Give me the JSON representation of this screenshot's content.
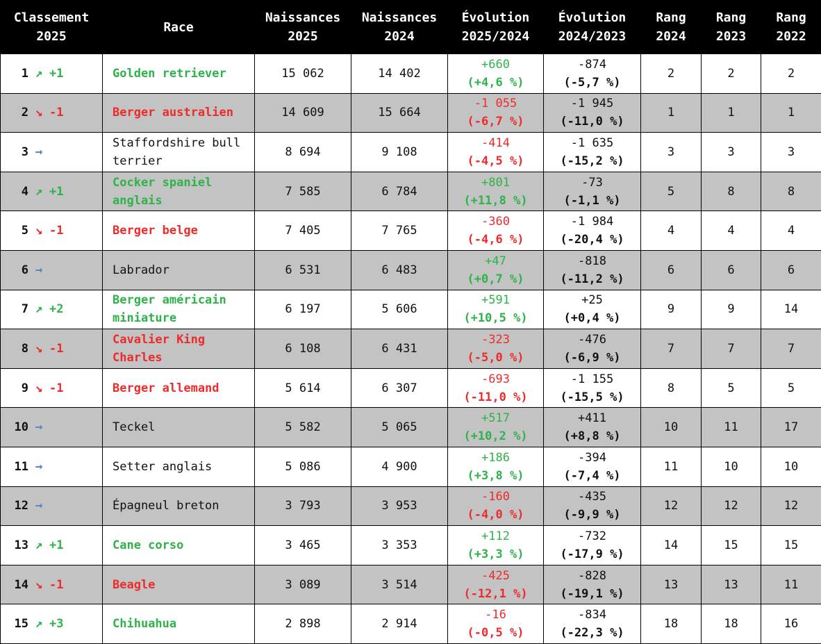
{
  "chart_data": {
    "type": "table",
    "columns": [
      "Classement\n2025",
      "Race",
      "Naissances\n2025",
      "Naissances\n2024",
      "Évolution\n2025/2024",
      "Évolution\n2024/2023",
      "Rang\n2024",
      "Rang\n2023",
      "Rang\n2022"
    ],
    "colors": {
      "up": "#2db34a",
      "down": "#ee2b2b",
      "same": "#5b86c5",
      "header_bg": "#000000",
      "alt_row": "#c3c3c3"
    },
    "rows": [
      {
        "rank": "1",
        "trend": "up",
        "change": "+1",
        "race": "Golden retriever",
        "n2025": "15 062",
        "n2024": "14 402",
        "evo_abs": "+660",
        "evo_pct": "(+4,6 %)",
        "evo_trend": "up",
        "evo2_abs": "-874",
        "evo2_pct": "(-5,7 %)",
        "r2024": "2",
        "r2023": "2",
        "r2022": "2"
      },
      {
        "rank": "2",
        "trend": "down",
        "change": "-1",
        "race": "Berger australien",
        "n2025": "14 609",
        "n2024": "15 664",
        "evo_abs": "-1 055",
        "evo_pct": "(-6,7 %)",
        "evo_trend": "down",
        "evo2_abs": "-1 945",
        "evo2_pct": "(-11,0 %)",
        "r2024": "1",
        "r2023": "1",
        "r2022": "1"
      },
      {
        "rank": "3",
        "trend": "same",
        "change": "",
        "race": "Staffordshire bull terrier",
        "n2025": "8 694",
        "n2024": "9 108",
        "evo_abs": "-414",
        "evo_pct": "(-4,5 %)",
        "evo_trend": "down",
        "evo2_abs": "-1 635",
        "evo2_pct": "(-15,2 %)",
        "r2024": "3",
        "r2023": "3",
        "r2022": "3"
      },
      {
        "rank": "4",
        "trend": "up",
        "change": "+1",
        "race": "Cocker spaniel anglais",
        "n2025": "7 585",
        "n2024": "6 784",
        "evo_abs": "+801",
        "evo_pct": "(+11,8 %)",
        "evo_trend": "up",
        "evo2_abs": "-73",
        "evo2_pct": "(-1,1 %)",
        "r2024": "5",
        "r2023": "8",
        "r2022": "8"
      },
      {
        "rank": "5",
        "trend": "down",
        "change": "-1",
        "race": "Berger belge",
        "n2025": "7 405",
        "n2024": "7 765",
        "evo_abs": "-360",
        "evo_pct": "(-4,6 %)",
        "evo_trend": "down",
        "evo2_abs": "-1 984",
        "evo2_pct": "(-20,4 %)",
        "r2024": "4",
        "r2023": "4",
        "r2022": "4"
      },
      {
        "rank": "6",
        "trend": "same",
        "change": "",
        "race": "Labrador",
        "n2025": "6 531",
        "n2024": "6 483",
        "evo_abs": "+47",
        "evo_pct": "(+0,7 %)",
        "evo_trend": "up",
        "evo2_abs": "-818",
        "evo2_pct": "(-11,2 %)",
        "r2024": "6",
        "r2023": "6",
        "r2022": "6"
      },
      {
        "rank": "7",
        "trend": "up",
        "change": "+2",
        "race": "Berger américain miniature",
        "n2025": "6 197",
        "n2024": "5 606",
        "evo_abs": "+591",
        "evo_pct": "(+10,5 %)",
        "evo_trend": "up",
        "evo2_abs": "+25",
        "evo2_pct": "(+0,4 %)",
        "r2024": "9",
        "r2023": "9",
        "r2022": "14"
      },
      {
        "rank": "8",
        "trend": "down",
        "change": "-1",
        "race": "Cavalier King Charles",
        "n2025": "6 108",
        "n2024": "6 431",
        "evo_abs": "-323",
        "evo_pct": "(-5,0 %)",
        "evo_trend": "down",
        "evo2_abs": "-476",
        "evo2_pct": "(-6,9 %)",
        "r2024": "7",
        "r2023": "7",
        "r2022": "7"
      },
      {
        "rank": "9",
        "trend": "down",
        "change": "-1",
        "race": "Berger allemand",
        "n2025": "5 614",
        "n2024": "6 307",
        "evo_abs": "-693",
        "evo_pct": "(-11,0 %)",
        "evo_trend": "down",
        "evo2_abs": "-1 155",
        "evo2_pct": "(-15,5 %)",
        "r2024": "8",
        "r2023": "5",
        "r2022": "5"
      },
      {
        "rank": "10",
        "trend": "same",
        "change": "",
        "race": "Teckel",
        "n2025": "5 582",
        "n2024": "5 065",
        "evo_abs": "+517",
        "evo_pct": "(+10,2 %)",
        "evo_trend": "up",
        "evo2_abs": "+411",
        "evo2_pct": "(+8,8 %)",
        "r2024": "10",
        "r2023": "11",
        "r2022": "17"
      },
      {
        "rank": "11",
        "trend": "same",
        "change": "",
        "race": "Setter anglais",
        "n2025": "5 086",
        "n2024": "4 900",
        "evo_abs": "+186",
        "evo_pct": "(+3,8 %)",
        "evo_trend": "up",
        "evo2_abs": "-394",
        "evo2_pct": "(-7,4 %)",
        "r2024": "11",
        "r2023": "10",
        "r2022": "10"
      },
      {
        "rank": "12",
        "trend": "same",
        "change": "",
        "race": "Épagneul breton",
        "n2025": "3 793",
        "n2024": "3 953",
        "evo_abs": "-160",
        "evo_pct": "(-4,0 %)",
        "evo_trend": "down",
        "evo2_abs": "-435",
        "evo2_pct": "(-9,9 %)",
        "r2024": "12",
        "r2023": "12",
        "r2022": "12"
      },
      {
        "rank": "13",
        "trend": "up",
        "change": "+1",
        "race": "Cane corso",
        "n2025": "3 465",
        "n2024": "3 353",
        "evo_abs": "+112",
        "evo_pct": "(+3,3 %)",
        "evo_trend": "up",
        "evo2_abs": "-732",
        "evo2_pct": "(-17,9 %)",
        "r2024": "14",
        "r2023": "15",
        "r2022": "15"
      },
      {
        "rank": "14",
        "trend": "down",
        "change": "-1",
        "race": "Beagle",
        "n2025": "3 089",
        "n2024": "3 514",
        "evo_abs": "-425",
        "evo_pct": "(-12,1 %)",
        "evo_trend": "down",
        "evo2_abs": "-828",
        "evo2_pct": "(-19,1 %)",
        "r2024": "13",
        "r2023": "13",
        "r2022": "11"
      },
      {
        "rank": "15",
        "trend": "up",
        "change": "+3",
        "race": "Chihuahua",
        "n2025": "2 898",
        "n2024": "2 914",
        "evo_abs": "-16",
        "evo_pct": "(-0,5 %)",
        "evo_trend": "down",
        "evo2_abs": "-834",
        "evo2_pct": "(-22,3 %)",
        "r2024": "18",
        "r2023": "18",
        "r2022": "16"
      }
    ]
  }
}
